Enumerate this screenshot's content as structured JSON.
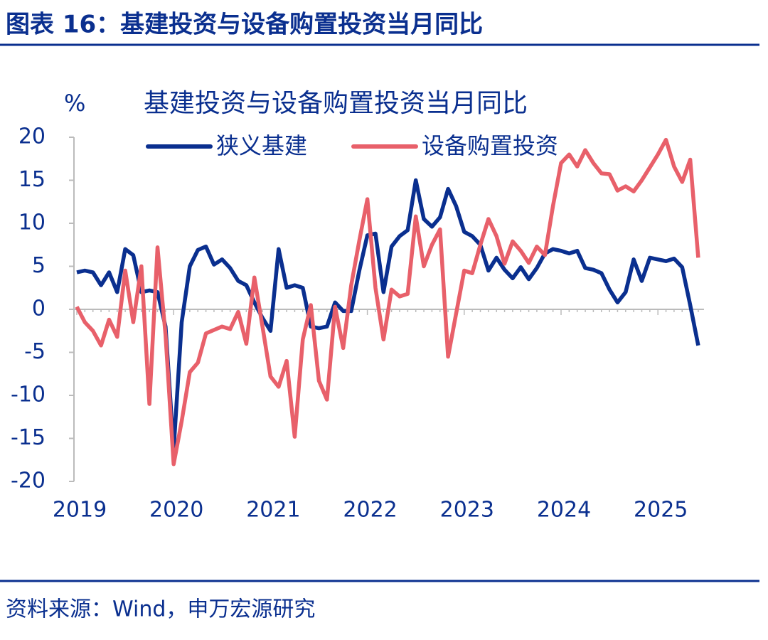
{
  "header": {
    "title": "图表 16：基建投资与设备购置投资当月同比"
  },
  "chart_data": {
    "type": "line",
    "title": "基建投资与设备购置投资当月同比",
    "y_label": "%",
    "categories": [
      "2019",
      null,
      null,
      null,
      null,
      null,
      null,
      null,
      null,
      null,
      null,
      null,
      "2020",
      null,
      null,
      null,
      null,
      null,
      null,
      null,
      null,
      null,
      null,
      null,
      "2021",
      null,
      null,
      null,
      null,
      null,
      null,
      null,
      null,
      null,
      null,
      null,
      "2022",
      null,
      null,
      null,
      null,
      null,
      null,
      null,
      null,
      null,
      null,
      null,
      "2023",
      null,
      null,
      null,
      null,
      null,
      null,
      null,
      null,
      null,
      null,
      null,
      "2024",
      null,
      null,
      null,
      null,
      null,
      null,
      null,
      null,
      null,
      null,
      null,
      "2025",
      null,
      null,
      null,
      null,
      null
    ],
    "series": [
      {
        "name": "狭义基建",
        "color": "#0a2f8f",
        "values": [
          4.3,
          4.5,
          4.3,
          2.8,
          4.3,
          2.0,
          7.0,
          6.3,
          2.0,
          2.2,
          2.0,
          -2.0,
          -16.3,
          -1.5,
          5.0,
          6.9,
          7.3,
          5.2,
          5.8,
          4.8,
          3.3,
          2.8,
          0.8,
          -1.0,
          -2.5,
          7.0,
          2.5,
          2.8,
          2.5,
          -2.0,
          -2.2,
          -2.0,
          0.8,
          -0.2,
          -0.2,
          4.5,
          8.6,
          8.8,
          2.0,
          7.3,
          8.5,
          9.2,
          15.0,
          10.5,
          9.6,
          10.7,
          14.0,
          12.0,
          9.0,
          8.5,
          7.5,
          4.5,
          6.0,
          4.6,
          3.6,
          4.9,
          3.5,
          4.8,
          6.5,
          7.0,
          6.8,
          6.5,
          6.8,
          4.8,
          4.6,
          4.2,
          2.3,
          0.8,
          2.0,
          5.8,
          3.3,
          6.0,
          5.8,
          5.6,
          5.9,
          4.9,
          0.5,
          -4.2
        ]
      },
      {
        "name": "设备购置投资",
        "color": "#e8606a",
        "values": [
          0.3,
          -1.5,
          -2.5,
          -4.2,
          -1.2,
          -3.2,
          4.5,
          -1.5,
          5.0,
          -11.0,
          7.2,
          -3.0,
          -18.0,
          -13.0,
          -7.3,
          -6.2,
          -2.8,
          -2.4,
          -2.0,
          -2.3,
          -0.3,
          -4.0,
          3.7,
          -2.0,
          -7.8,
          -9.0,
          -6.0,
          -14.8,
          -3.5,
          0.5,
          -8.3,
          -10.5,
          0.3,
          -4.5,
          2.8,
          8.0,
          12.8,
          2.5,
          -3.5,
          2.3,
          1.5,
          1.8,
          10.8,
          5.0,
          7.5,
          9.3,
          -5.5,
          -0.5,
          4.5,
          4.2,
          7.5,
          10.5,
          8.5,
          5.3,
          7.9,
          6.8,
          5.4,
          7.3,
          6.3,
          12.0,
          17.0,
          18.0,
          16.6,
          18.5,
          17.0,
          15.8,
          15.7,
          13.8,
          14.3,
          13.7,
          15.0,
          16.5,
          18.0,
          19.7,
          16.6,
          14.8,
          17.4,
          6.0
        ]
      }
    ],
    "ylim": [
      -20,
      20
    ],
    "yticks": [
      -20,
      -15,
      -10,
      -5,
      0,
      5,
      10,
      15,
      20
    ],
    "grid": false
  },
  "footer": {
    "source": "资料来源：Wind，申万宏源研究"
  }
}
